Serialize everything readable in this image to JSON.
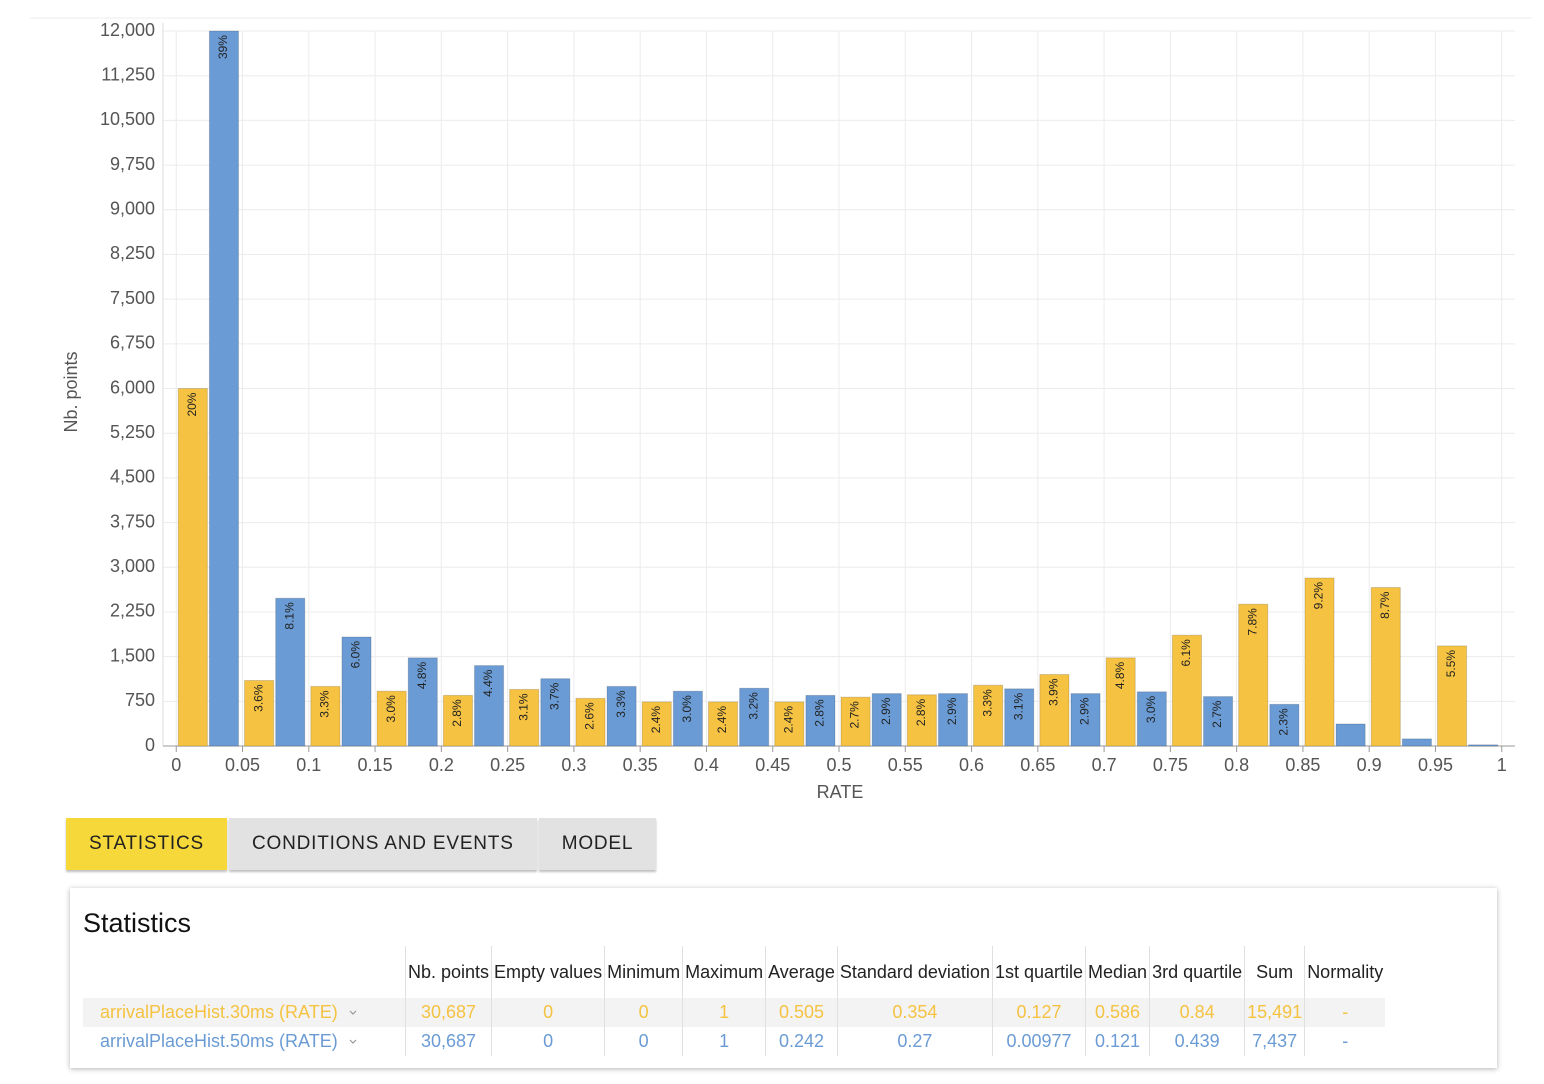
{
  "chart_data": {
    "type": "histogram",
    "x_label": "RATE",
    "y_label": "Nb. points",
    "bins": [
      0,
      0.05,
      0.1,
      0.15,
      0.2,
      0.25,
      0.3,
      0.35,
      0.4,
      0.45,
      0.5,
      0.55,
      0.6,
      0.65,
      0.7,
      0.75,
      0.8,
      0.85,
      0.9,
      0.95,
      1
    ],
    "series": [
      {
        "name": "arrivalPlaceHist.30ms (RATE)",
        "color": "#f5c242",
        "values": [
          6000,
          1100,
          1000,
          920,
          850,
          950,
          800,
          740,
          740,
          740,
          820,
          860,
          1020,
          1200,
          1480,
          1860,
          2380,
          2820,
          2660,
          1680
        ],
        "value_labels": [
          "20%",
          "3.6%",
          "3.3%",
          "3.0%",
          "2.8%",
          "3.1%",
          "2.6%",
          "2.4%",
          "2.4%",
          "2.4%",
          "2.7%",
          "2.8%",
          "3.3%",
          "3.9%",
          "4.8%",
          "6.1%",
          "7.8%",
          "9.2%",
          "8.7%",
          "5.5%"
        ]
      },
      {
        "name": "arrivalPlaceHist.50ms (RATE)",
        "color": "#6a9bd4",
        "values": [
          12000,
          2480,
          1830,
          1480,
          1350,
          1130,
          1000,
          920,
          970,
          850,
          880,
          880,
          960,
          880,
          910,
          830,
          700,
          370,
          120,
          20
        ],
        "value_labels": [
          "39%",
          "8.1%",
          "6.0%",
          "4.8%",
          "4.4%",
          "3.7%",
          "3.3%",
          "3.0%",
          "3.2%",
          "2.8%",
          "2.9%",
          "2.9%",
          "3.1%",
          "2.9%",
          "3.0%",
          "2.7%",
          "2.3%",
          null,
          null,
          null
        ]
      }
    ],
    "xlim": [
      -0.01,
      1.01
    ],
    "xticks": [
      0,
      0.05,
      0.1,
      0.15,
      0.2,
      0.25,
      0.3,
      0.35,
      0.4,
      0.45,
      0.5,
      0.55,
      0.6,
      0.65,
      0.7,
      0.75,
      0.8,
      0.85,
      0.9,
      0.95,
      1
    ],
    "ylim": [
      0,
      12000
    ],
    "yticks": [
      0,
      750,
      {
        "value": 1500,
        "label": "1,500"
      },
      {
        "value": 2250,
        "label": "2,250"
      },
      {
        "value": 3000,
        "label": "3,000"
      },
      {
        "value": 3750,
        "label": "3,750"
      },
      {
        "value": 4500,
        "label": "4,500"
      },
      {
        "value": 5250,
        "label": "5,250"
      },
      {
        "value": 6000,
        "label": "6,000"
      },
      {
        "value": 6750,
        "label": "6,750"
      },
      {
        "value": 7500,
        "label": "7,500"
      },
      {
        "value": 8250,
        "label": "8,250"
      },
      {
        "value": 9000,
        "label": "9,000"
      },
      {
        "value": 9750,
        "label": "9,750"
      },
      {
        "value": 10500,
        "label": "10,500"
      },
      {
        "value": 11250,
        "label": "11,250"
      },
      {
        "value": 12000,
        "label": "12,000"
      }
    ],
    "grid": true
  },
  "tabs": {
    "items": [
      "STATISTICS",
      "CONDITIONS AND EVENTS",
      "MODEL"
    ],
    "active": 0
  },
  "statistics": {
    "title": "Statistics",
    "columns": [
      "Nb. points",
      "Empty values",
      "Minimum",
      "Maximum",
      "Average",
      "Standard deviation",
      "1st quartile",
      "Median",
      "3rd quartile",
      "Sum",
      "Normality"
    ],
    "rows": [
      [
        "30,687",
        "0",
        "0",
        "1",
        "0.505",
        "0.354",
        "0.127",
        "0.586",
        "0.84",
        "15,491",
        "-"
      ],
      [
        "30,687",
        "0",
        "0",
        "1",
        "0.242",
        "0.27",
        "0.00977",
        "0.121",
        "0.439",
        "7,437",
        "-"
      ]
    ]
  }
}
